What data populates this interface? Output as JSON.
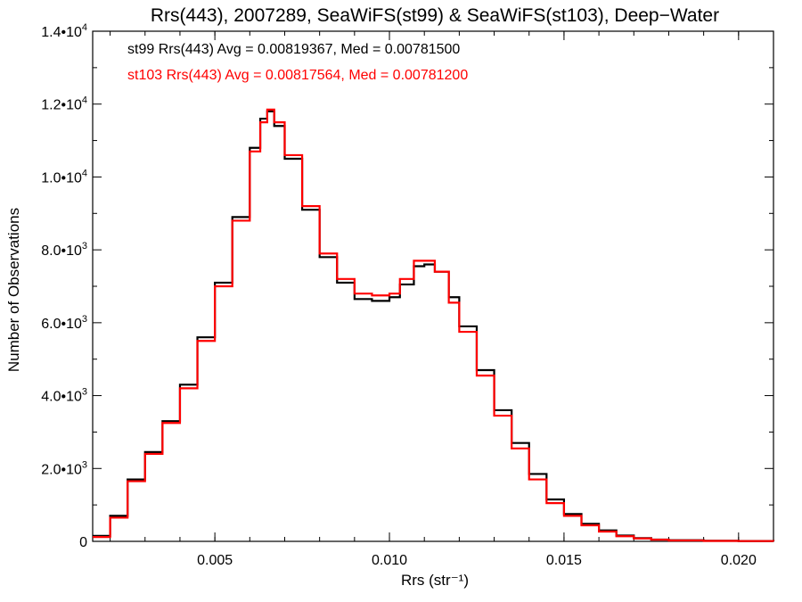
{
  "chart_data": {
    "type": "line",
    "title": "Rrs(443), 2007289, SeaWiFS(st99) & SeaWiFS(st103), Deep−Water",
    "xlabel": "Rrs (str⁻¹)",
    "ylabel": "Number of Observations",
    "xlim": [
      0.0015,
      0.021
    ],
    "ylim": [
      0,
      14000
    ],
    "x_ticks": [
      {
        "value": 0.005,
        "label": "0.005"
      },
      {
        "value": 0.01,
        "label": "0.010"
      },
      {
        "value": 0.015,
        "label": "0.015"
      },
      {
        "value": 0.02,
        "label": "0.020"
      }
    ],
    "y_ticks": [
      {
        "value": 0,
        "mant": "0",
        "exp": ""
      },
      {
        "value": 2000,
        "mant": "2.0•10",
        "exp": "3"
      },
      {
        "value": 4000,
        "mant": "4.0•10",
        "exp": "3"
      },
      {
        "value": 6000,
        "mant": "6.0•10",
        "exp": "3"
      },
      {
        "value": 8000,
        "mant": "8.0•10",
        "exp": "3"
      },
      {
        "value": 10000,
        "mant": "1.0•10",
        "exp": "4"
      },
      {
        "value": 12000,
        "mant": "1.2•10",
        "exp": "4"
      },
      {
        "value": 14000,
        "mant": "1.4•10",
        "exp": "4"
      }
    ],
    "grid": false,
    "annotations": [
      {
        "text": "st99 Rrs(443) Avg = 0.00819367, Med = 0.00781500",
        "color": "#000000"
      },
      {
        "text": "st103 Rrs(443) Avg = 0.00817564, Med = 0.00781200",
        "color": "#ff0000"
      }
    ],
    "x": [
      0.0015,
      0.002,
      0.0025,
      0.003,
      0.0035,
      0.004,
      0.0045,
      0.005,
      0.0055,
      0.006,
      0.0063,
      0.0065,
      0.0067,
      0.007,
      0.0075,
      0.008,
      0.0085,
      0.009,
      0.0095,
      0.01,
      0.0103,
      0.0107,
      0.011,
      0.0113,
      0.0117,
      0.012,
      0.0125,
      0.013,
      0.0135,
      0.014,
      0.0145,
      0.015,
      0.0155,
      0.016,
      0.0165,
      0.017,
      0.0175,
      0.018,
      0.019,
      0.02,
      0.021
    ],
    "series": [
      {
        "color": "#000000",
        "values": [
          150,
          700,
          1700,
          2450,
          3300,
          4300,
          5600,
          7100,
          8900,
          10800,
          11600,
          11800,
          11400,
          10500,
          9100,
          7800,
          7100,
          6650,
          6600,
          6700,
          7050,
          7550,
          7600,
          7400,
          6700,
          5900,
          4700,
          3600,
          2700,
          1850,
          1150,
          750,
          480,
          300,
          160,
          90,
          50,
          30,
          15,
          10,
          5
        ]
      },
      {
        "color": "#ff0000",
        "values": [
          120,
          650,
          1650,
          2400,
          3250,
          4200,
          5500,
          7000,
          8800,
          10700,
          11500,
          11850,
          11500,
          10600,
          9200,
          7900,
          7200,
          6800,
          6750,
          6800,
          7200,
          7700,
          7700,
          7400,
          6550,
          5750,
          4550,
          3450,
          2550,
          1700,
          1050,
          700,
          440,
          270,
          140,
          80,
          45,
          25,
          12,
          8,
          4
        ]
      }
    ]
  }
}
